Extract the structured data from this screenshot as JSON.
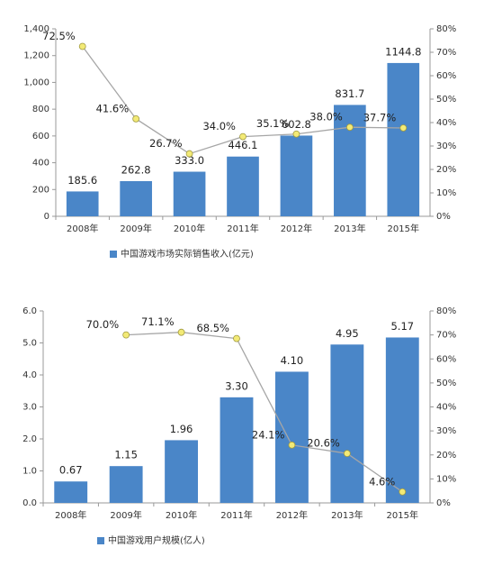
{
  "chart_data": [
    {
      "type": "bar",
      "categories": [
        "2008年",
        "2009年",
        "2010年",
        "2011年",
        "2012年",
        "2013年",
        "2015年"
      ],
      "series": [
        {
          "name": "中国游戏市场实际销售收入(亿元)",
          "color": "#4a86c8",
          "values": [
            185.6,
            262.8,
            333.0,
            446.1,
            602.8,
            831.7,
            1144.8
          ],
          "value_labels": [
            "185.6",
            "262.8",
            "333.0",
            "446.1",
            "602.8",
            "831.7",
            "1144.8"
          ]
        },
        {
          "type": "line",
          "axis": "y2",
          "color": "#a6a6a6",
          "values": [
            72.5,
            41.6,
            26.7,
            34.0,
            35.1,
            38.0,
            37.7
          ],
          "value_labels": [
            "72.5%",
            "41.6%",
            "26.7%",
            "34.0%",
            "35.1%",
            "38.0%",
            "37.7%"
          ]
        }
      ],
      "ylim": [
        0,
        1400
      ],
      "yticks": [
        0,
        200,
        400,
        600,
        800,
        {
          "value": 1000,
          "label": "1,000"
        },
        {
          "value": 1200,
          "label": "1,200"
        },
        {
          "value": 1400,
          "label": "1,400"
        }
      ],
      "y2lim": [
        0,
        80
      ],
      "y2ticks": [
        {
          "value": 0,
          "label": "0%"
        },
        {
          "value": 10,
          "label": "10%"
        },
        {
          "value": 20,
          "label": "20%"
        },
        {
          "value": 30,
          "label": "30%"
        },
        {
          "value": 40,
          "label": "40%"
        },
        {
          "value": 50,
          "label": "50%"
        },
        {
          "value": 60,
          "label": "60%"
        },
        {
          "value": 70,
          "label": "70%"
        },
        {
          "value": 80,
          "label": "80%"
        }
      ],
      "legend": "bottom"
    },
    {
      "type": "bar",
      "categories": [
        "2008年",
        "2009年",
        "2010年",
        "2011年",
        "2012年",
        "2013年",
        "2015年"
      ],
      "series": [
        {
          "name": "中国游戏用户规模(亿人)",
          "color": "#4a86c8",
          "values": [
            0.67,
            1.15,
            1.96,
            3.3,
            4.1,
            4.95,
            5.17
          ],
          "value_labels": [
            "0.67",
            "1.15",
            "1.96",
            "3.30",
            "4.10",
            "4.95",
            "5.17"
          ]
        },
        {
          "type": "line",
          "axis": "y2",
          "color": "#a6a6a6",
          "values": [
            null,
            70.0,
            71.1,
            68.5,
            24.1,
            20.6,
            4.6
          ],
          "value_labels": [
            null,
            "70.0%",
            "71.1%",
            "68.5%",
            "24.1%",
            "20.6%",
            "4.6%"
          ]
        }
      ],
      "ylim": [
        0,
        6
      ],
      "yticks": [
        {
          "value": 0,
          "label": "0.0"
        },
        {
          "value": 1,
          "label": "1.0"
        },
        {
          "value": 2,
          "label": "2.0"
        },
        {
          "value": 3,
          "label": "3.0"
        },
        {
          "value": 4,
          "label": "4.0"
        },
        {
          "value": 5,
          "label": "5.0"
        },
        {
          "value": 6,
          "label": "6.0"
        }
      ],
      "y2lim": [
        0,
        80
      ],
      "y2ticks": [
        {
          "value": 0,
          "label": "0%"
        },
        {
          "value": 10,
          "label": "10%"
        },
        {
          "value": 20,
          "label": "20%"
        },
        {
          "value": 30,
          "label": "30%"
        },
        {
          "value": 40,
          "label": "40%"
        },
        {
          "value": 50,
          "label": "50%"
        },
        {
          "value": 60,
          "label": "60%"
        },
        {
          "value": 70,
          "label": "70%"
        },
        {
          "value": 80,
          "label": "80%"
        }
      ],
      "legend": "bottom"
    }
  ]
}
